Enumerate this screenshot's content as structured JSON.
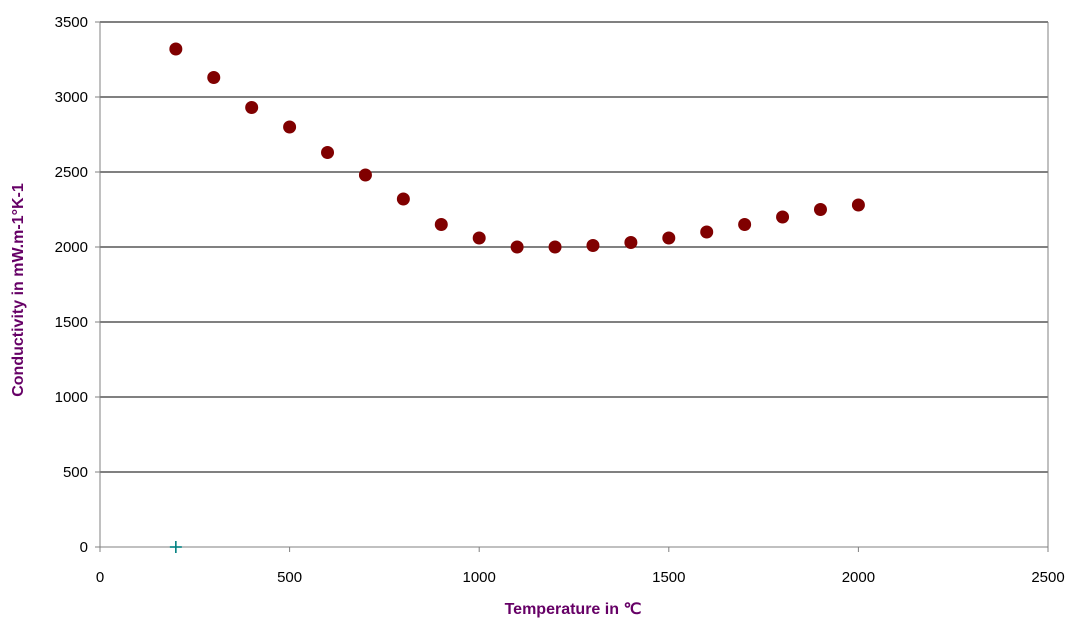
{
  "chart_data": {
    "type": "scatter",
    "title": "",
    "xlabel": "Temperature in ℃",
    "ylabel": "Conductivity in mW.m-1°K-1",
    "xlim": [
      0,
      2500
    ],
    "ylim": [
      0,
      3500
    ],
    "x_ticks": [
      0,
      500,
      1000,
      1500,
      2000,
      2500
    ],
    "y_ticks": [
      0,
      500,
      1000,
      1500,
      2000,
      2500,
      3000,
      3500
    ],
    "grid": "horizontal",
    "legend": "none",
    "colors": {
      "axis_title": "#660066",
      "grid": "#000000",
      "axis": "#808080"
    },
    "series": [
      {
        "marker": "circle",
        "color": "#800000",
        "x": [
          200,
          300,
          400,
          500,
          600,
          700,
          800,
          900,
          1000,
          1100,
          1200,
          1300,
          1400,
          1500,
          1600,
          1700,
          1800,
          1900,
          2000
        ],
        "y": [
          3320,
          3130,
          2930,
          2800,
          2630,
          2480,
          2320,
          2150,
          2060,
          2000,
          2000,
          2010,
          2030,
          2060,
          2100,
          2150,
          2200,
          2250,
          2280
        ]
      },
      {
        "marker": "plus",
        "color": "#008080",
        "x": [
          200
        ],
        "y": [
          0
        ]
      }
    ]
  }
}
